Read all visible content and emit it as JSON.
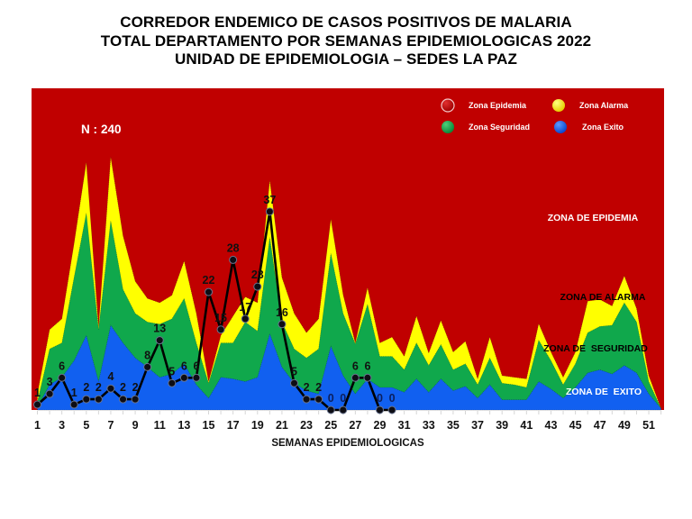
{
  "chart_data": {
    "type": "area",
    "title": [
      "CORREDOR ENDEMICO DE CASOS POSITIVOS DE MALARIA",
      "TOTAL DEPARTAMENTO POR SEMANAS EPIDEMIOLOGICAS 2022",
      "UNIDAD DE EPIDEMIOLOGIA – SEDES LA PAZ"
    ],
    "xlabel": "SEMANAS EPIDEMIOLOGICAS",
    "ylabel": "",
    "xlim": [
      0.52,
      52.25
    ],
    "ylim": [
      0,
      60
    ],
    "grid": false,
    "x": [
      1,
      2,
      3,
      4,
      5,
      6,
      7,
      8,
      9,
      10,
      11,
      12,
      13,
      14,
      15,
      16,
      17,
      18,
      19,
      20,
      21,
      22,
      23,
      24,
      25,
      26,
      27,
      28,
      29,
      30,
      31,
      32,
      33,
      34,
      35,
      36,
      37,
      38,
      39,
      40,
      41,
      42,
      43,
      44,
      45,
      46,
      47,
      48,
      49,
      50,
      51,
      52
    ],
    "x_tick_labels": [
      "1",
      "3",
      "5",
      "7",
      "9",
      "11",
      "13",
      "15",
      "17",
      "19",
      "21",
      "23",
      "25",
      "27",
      "29",
      "31",
      "33",
      "35",
      "37",
      "39",
      "41",
      "43",
      "45",
      "47",
      "49",
      "51"
    ],
    "annotation": {
      "n_label": "N :",
      "n_value": 240
    },
    "legend": {
      "position": "top-right",
      "items": [
        {
          "label": "Zona Epidemia",
          "color": "#C00000"
        },
        {
          "label": "Zona Alarma",
          "color": "#FFFF00"
        },
        {
          "label": "Zona Seguridad",
          "color": "#10A84C"
        },
        {
          "label": "Zona Exito",
          "color": "#1160F0"
        }
      ]
    },
    "zone_labels": {
      "epidemia": "ZONA DE EPIDEMIA",
      "alarma": "ZONA DE ALARMA",
      "seguridad": "ZONA DE  SEGURIDAD",
      "exito": "ZONA DE  EXITO"
    },
    "zones": [
      {
        "name": "Zona Epidemia",
        "color": "#C00000",
        "fill_to": "top"
      },
      {
        "name": "Zona Alarma",
        "color": "#FFFF00",
        "values": [
          3,
          15,
          17,
          31,
          46.2,
          15.5,
          47.2,
          32.5,
          24,
          20.8,
          20,
          21.4,
          27.8,
          18,
          5.3,
          13.9,
          17.5,
          21.1,
          20,
          42.8,
          24.7,
          18,
          14.4,
          17,
          35.6,
          21.5,
          12.5,
          22.8,
          12.5,
          13.6,
          10,
          17.5,
          10.6,
          16.7,
          10.8,
          12.8,
          5.8,
          13.6,
          6.4,
          6.1,
          5.8,
          16.1,
          10.8,
          6.1,
          10.8,
          20.3,
          20.6,
          19.4,
          25,
          18.9,
          6.4,
          0.3
        ]
      },
      {
        "name": "Zona Seguridad",
        "color": "#10A84C",
        "values": [
          1.5,
          11.4,
          12.5,
          24.7,
          36.7,
          15,
          35.3,
          22.5,
          18,
          16.4,
          16,
          17,
          20.8,
          12.5,
          5,
          12.5,
          12.5,
          16.4,
          14.7,
          32.2,
          16.4,
          11.4,
          9.7,
          11.4,
          29.2,
          18,
          12.3,
          19.7,
          10,
          10,
          7.5,
          12.5,
          8.3,
          12.2,
          7.5,
          8.6,
          4.7,
          9.7,
          5,
          4.7,
          4.2,
          13,
          9.2,
          4.7,
          8.6,
          14.4,
          15.6,
          15.8,
          20,
          16.4,
          5.3,
          0.3
        ]
      },
      {
        "name": "Zona Exito",
        "color": "#1160F0",
        "values": [
          0.5,
          4.7,
          6.1,
          9.2,
          13.9,
          5.3,
          15.8,
          12.5,
          9.7,
          8,
          6.1,
          6.7,
          8.6,
          4.7,
          2.2,
          6.1,
          5.8,
          5.3,
          6.1,
          14.2,
          8,
          5,
          3.6,
          3,
          11.9,
          6.4,
          3,
          5.8,
          4.2,
          4.2,
          3.3,
          5.8,
          3.3,
          5.8,
          3.6,
          4.4,
          2.2,
          4.7,
          1.9,
          1.9,
          1.9,
          5.3,
          3.9,
          2.2,
          4.2,
          6.9,
          7.5,
          6.7,
          8.3,
          6.9,
          3,
          0.3
        ]
      }
    ],
    "cases": {
      "type": "line",
      "color": "#000000",
      "label_color": "#111111",
      "zero_label_color": "#0B1F5E",
      "x": [
        1,
        2,
        3,
        4,
        5,
        6,
        7,
        8,
        9,
        10,
        11,
        12,
        13,
        14,
        15,
        16,
        17,
        18,
        19,
        20,
        21,
        22,
        23,
        24,
        25,
        26,
        27,
        28,
        29,
        30
      ],
      "values": [
        1,
        3,
        6,
        1,
        2,
        2,
        4,
        2,
        2,
        8,
        13,
        5,
        6,
        6,
        22,
        15,
        28,
        17,
        23,
        37,
        16,
        5,
        2,
        2,
        0,
        0,
        6,
        6,
        0,
        0
      ]
    }
  }
}
